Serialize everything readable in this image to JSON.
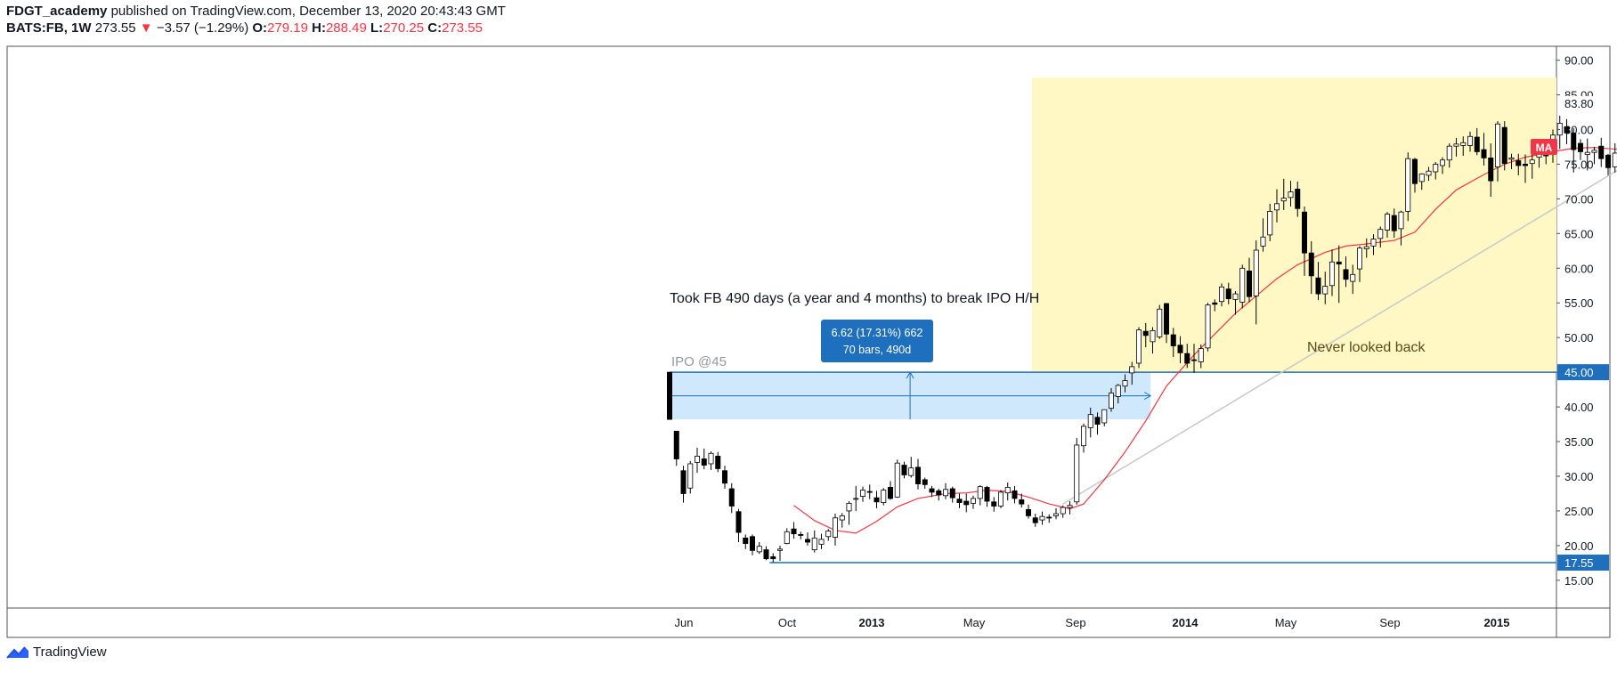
{
  "header": {
    "author": "FDGT_academy",
    "published_text": "published on TradingView.com, December 13, 2020 20:43:43 GMT",
    "symbol": "BATS:FB, 1W",
    "last": "273.55",
    "change_arrow": "▼",
    "change": "−3.57 (−1.29%)",
    "o_label": "O:",
    "o_value": "279.19",
    "h_label": "H:",
    "h_value": "288.49",
    "l_label": "L:",
    "l_value": "270.25",
    "c_label": "C:",
    "c_value": "273.55"
  },
  "footer": {
    "brand": "TradingView"
  },
  "colors": {
    "up": "#ffffff",
    "down": "#000000",
    "ma": "#f23645",
    "level": "#1e6fbd",
    "highlight": "#fff8c4",
    "measure": "#bbdefb",
    "trend": "#c8c8c8",
    "label_bg": "#1e6fbd"
  },
  "chart_data": {
    "type": "candlestick",
    "ylim": [
      11,
      92
    ],
    "y_ticks": [
      "15.00",
      "20.00",
      "25.00",
      "30.00",
      "35.00",
      "40.00",
      "45.00",
      "50.00",
      "55.00",
      "60.00",
      "65.00",
      "70.00",
      "75.00",
      "80.00",
      "85.00",
      "90.00"
    ],
    "x_ticks": [
      "Jun",
      "Oct",
      "2013",
      "May",
      "Sep",
      "2014",
      "May",
      "Sep",
      "2015"
    ],
    "x_ticks_bold": [
      "2013",
      "2014",
      "2015"
    ],
    "price_labels": [
      {
        "value": "83.80",
        "level": 83.8,
        "style": "plain"
      },
      {
        "value": "45.00",
        "level": 45,
        "style": "filled"
      },
      {
        "value": "17.55",
        "level": 17.55,
        "style": "filled"
      },
      {
        "value": "MA",
        "level": 77.5,
        "style": "ma"
      }
    ],
    "annotations": {
      "main": "Took FB 490 days (a year and 4 months) to break IPO H/H",
      "ipo": "IPO @45",
      "never": "Never looked back",
      "measure_line1": "6.62 (17.31%) 662",
      "measure_line2": "70 bars, 490d"
    },
    "levels": {
      "ipo_high": 45,
      "low": 17.55,
      "measure_low": 38.2
    },
    "candles": [
      [
        45,
        45,
        38.2,
        38.2
      ],
      [
        36.5,
        36.5,
        31.5,
        32.5
      ],
      [
        30.8,
        31.5,
        26.2,
        27.5
      ],
      [
        28.3,
        32.2,
        27.5,
        31.8
      ],
      [
        32,
        34.1,
        30.5,
        32.9
      ],
      [
        32.5,
        34,
        31,
        31.6
      ],
      [
        31.8,
        33.6,
        30.9,
        33.3
      ],
      [
        32.9,
        33.5,
        30.6,
        31.1
      ],
      [
        30.8,
        31.5,
        28.2,
        29
      ],
      [
        28.2,
        29,
        24.7,
        25.7
      ],
      [
        24.9,
        25.3,
        20.5,
        21.9
      ],
      [
        21.1,
        21.6,
        19.5,
        20.3
      ],
      [
        21.3,
        21.6,
        18.6,
        19.3
      ],
      [
        19.1,
        20.5,
        18.8,
        19.9
      ],
      [
        19.4,
        19.9,
        17.9,
        18.1
      ],
      [
        18.4,
        18.9,
        17.6,
        18.1
      ],
      [
        19.3,
        20,
        17.8,
        19.5
      ],
      [
        20.3,
        22.5,
        20.2,
        22
      ],
      [
        22.4,
        23.4,
        21,
        21.7
      ],
      [
        21.6,
        22,
        20.9,
        21.5
      ],
      [
        20.9,
        21.9,
        20,
        20.5
      ],
      [
        19.4,
        22.2,
        19,
        21.1
      ],
      [
        20.2,
        21.7,
        19.5,
        20.9
      ],
      [
        21.3,
        22.4,
        20.7,
        22.1
      ],
      [
        21.2,
        24.6,
        20,
        24
      ],
      [
        23.7,
        24.7,
        22.6,
        24.3
      ],
      [
        25,
        26.4,
        23,
        26.1
      ],
      [
        26.7,
        28.6,
        25,
        26.8
      ],
      [
        27.1,
        28.5,
        26.3,
        28
      ],
      [
        27.8,
        28.8,
        26.7,
        27.7
      ],
      [
        26.9,
        27.9,
        25.4,
        26.3
      ],
      [
        26.2,
        28.3,
        25.8,
        28
      ],
      [
        28.4,
        29.3,
        26.6,
        26.8
      ],
      [
        27,
        32.4,
        26.9,
        31.9
      ],
      [
        31.6,
        32.1,
        29.7,
        30.2
      ],
      [
        30.1,
        32.8,
        29.8,
        31.2
      ],
      [
        31.3,
        32.5,
        28.1,
        28.9
      ],
      [
        29.5,
        29.8,
        28.2,
        28.8
      ],
      [
        28.2,
        28.6,
        27,
        27.7
      ],
      [
        27.9,
        28.2,
        26.5,
        27.3
      ],
      [
        27.2,
        29,
        26.7,
        28.1
      ],
      [
        28.2,
        28.5,
        26.2,
        26.9
      ],
      [
        26.7,
        27.5,
        25.4,
        26.2
      ],
      [
        26.4,
        27.5,
        24.8,
        25.9
      ],
      [
        26.1,
        27.2,
        25.3,
        26.8
      ],
      [
        26.8,
        28.7,
        25.8,
        28.5
      ],
      [
        28.4,
        28.6,
        25.6,
        26.4
      ],
      [
        26.3,
        27,
        24.9,
        25.7
      ],
      [
        25.7,
        28,
        25.4,
        27.7
      ],
      [
        27.6,
        29.1,
        26.5,
        28.4
      ],
      [
        27.9,
        28.6,
        26.1,
        26.8
      ],
      [
        26.6,
        27.5,
        25.5,
        26
      ],
      [
        25.2,
        25.9,
        23.9,
        24.3
      ],
      [
        24,
        24.6,
        22.7,
        23.3
      ],
      [
        23.7,
        24.9,
        23,
        24.2
      ],
      [
        24.1,
        24.5,
        23.3,
        24
      ],
      [
        24.3,
        25.4,
        23.8,
        24.6
      ],
      [
        24.6,
        25.8,
        24,
        25.5
      ],
      [
        25.5,
        26.4,
        24.5,
        25.8
      ],
      [
        26.3,
        35.5,
        25.9,
        34.5
      ],
      [
        34.4,
        37.6,
        33.4,
        37.2
      ],
      [
        37,
        39.9,
        35.6,
        38.9
      ],
      [
        38.5,
        39.2,
        36,
        37.5
      ],
      [
        37.7,
        39.6,
        37.2,
        39.6
      ],
      [
        39.8,
        42.7,
        39.3,
        42
      ],
      [
        41.5,
        43.3,
        40.5,
        43.1
      ],
      [
        43,
        44.7,
        42.1,
        43.8
      ],
      [
        44.9,
        46.5,
        43.2,
        45.8
      ],
      [
        46.3,
        51.5,
        45.6,
        51.1
      ],
      [
        50.9,
        52.1,
        48.6,
        50.3
      ],
      [
        49.4,
        51.5,
        47.7,
        51
      ],
      [
        50.1,
        54.7,
        49.8,
        54.1
      ],
      [
        54.9,
        55,
        49.2,
        50.5
      ],
      [
        50.4,
        51.4,
        47.2,
        48.8
      ],
      [
        48.9,
        50.2,
        46.3,
        47.8
      ],
      [
        47.7,
        49.1,
        45.6,
        46.3
      ],
      [
        46.8,
        49.1,
        44.9,
        46.7
      ],
      [
        46.5,
        49,
        45.6,
        48.4
      ],
      [
        48.5,
        55,
        48,
        54.7
      ],
      [
        55,
        55.5,
        53.8,
        54.8
      ],
      [
        55.2,
        57.8,
        54.5,
        57.3
      ],
      [
        57,
        57.9,
        54.8,
        55.6
      ],
      [
        55.5,
        56.7,
        53.3,
        56.3
      ],
      [
        55.1,
        60.5,
        54.2,
        60
      ],
      [
        59.6,
        61.5,
        55.1,
        55.9
      ],
      [
        56,
        64,
        51.9,
        62.6
      ],
      [
        63.2,
        67.2,
        62.4,
        64.5
      ],
      [
        64.8,
        69.3,
        63.9,
        68.2
      ],
      [
        68.4,
        71.4,
        66.6,
        69.3
      ],
      [
        69.7,
        72.9,
        68.4,
        70.1
      ],
      [
        70.2,
        72.6,
        68.9,
        71
      ],
      [
        71.4,
        72.5,
        67.4,
        68.6
      ],
      [
        68.1,
        68.9,
        58.9,
        62.2
      ],
      [
        62.2,
        63.9,
        56.3,
        58.9
      ],
      [
        58.6,
        60.9,
        55.4,
        56.3
      ],
      [
        56.3,
        59.5,
        54.8,
        57.4
      ],
      [
        57.5,
        62.7,
        56,
        60.9
      ],
      [
        60.9,
        63.3,
        55,
        60.6
      ],
      [
        59.8,
        61.7,
        57.3,
        58.4
      ],
      [
        58.1,
        60.5,
        56.3,
        59.1
      ],
      [
        59.9,
        63.2,
        58,
        62.9
      ],
      [
        62.8,
        64.3,
        61.5,
        63.1
      ],
      [
        63.2,
        64.9,
        61.9,
        64.2
      ],
      [
        64.3,
        66,
        63,
        65.6
      ],
      [
        65.5,
        68.1,
        64.4,
        67.8
      ],
      [
        67.6,
        68.6,
        64.4,
        65.4
      ],
      [
        65.7,
        68.3,
        63.3,
        68.1
      ],
      [
        68.2,
        76.7,
        66.8,
        75.8
      ],
      [
        75.7,
        75.9,
        70.9,
        72.2
      ],
      [
        72.5,
        73.7,
        71.3,
        73.6
      ],
      [
        73.4,
        74.6,
        72.6,
        74
      ],
      [
        73.9,
        75.3,
        72.8,
        75
      ],
      [
        74.8,
        76,
        73.6,
        75.6
      ],
      [
        75.6,
        78,
        74.5,
        77.6
      ],
      [
        77.6,
        78.8,
        76.1,
        77.9
      ],
      [
        77.7,
        79,
        76.2,
        78.1
      ],
      [
        77.7,
        79.7,
        76.8,
        79
      ],
      [
        78.9,
        80.2,
        76.3,
        76.8
      ],
      [
        77.1,
        79.5,
        74.8,
        75.9
      ],
      [
        75.9,
        78,
        70.3,
        72.6
      ],
      [
        74.6,
        81.2,
        72.5,
        80.8
      ],
      [
        80.3,
        81.2,
        74.1,
        75.1
      ],
      [
        75.7,
        76.5,
        74.3,
        75.9
      ],
      [
        75.5,
        76.5,
        73.4,
        74.8
      ],
      [
        75,
        76.4,
        72.3,
        74.8
      ],
      [
        75.1,
        76.4,
        72.9,
        75.6
      ],
      [
        76,
        78.5,
        74.5,
        78.2
      ],
      [
        77.9,
        78.5,
        75,
        76.2
      ],
      [
        76.4,
        80,
        75.2,
        79.2
      ],
      [
        79.2,
        82,
        77.2,
        80.9
      ],
      [
        80.4,
        81.5,
        77.9,
        79.5
      ],
      [
        79.5,
        80.2,
        73.8,
        77.1
      ],
      [
        78,
        78.6,
        75.6,
        76.8
      ],
      [
        76.4,
        78.7,
        74.1,
        76.7
      ],
      [
        76.7,
        77.5,
        75,
        77
      ],
      [
        77.6,
        78.8,
        74.6,
        75.8
      ],
      [
        76.3,
        76.5,
        73.4,
        74.5
      ],
      [
        74.6,
        78,
        73.8,
        76.6
      ],
      [
        76.6,
        81.8,
        75.3,
        80.2
      ],
      [
        80.2,
        81.5,
        77.4,
        78.8
      ],
      [
        79.5,
        82.6,
        78.2,
        80.4
      ],
      [
        80.2,
        80.5,
        77.5,
        79
      ]
    ],
    "ma": [
      [
        18,
        25.8
      ],
      [
        21,
        23.6
      ],
      [
        24,
        22.2
      ],
      [
        27,
        21.8
      ],
      [
        30,
        23.5
      ],
      [
        33,
        25.6
      ],
      [
        36,
        26.8
      ],
      [
        40,
        27.5
      ],
      [
        43,
        27.6
      ],
      [
        46,
        28
      ],
      [
        49,
        27.8
      ],
      [
        52,
        27
      ],
      [
        55,
        26
      ],
      [
        58,
        25.3
      ],
      [
        60,
        26
      ],
      [
        63,
        29.5
      ],
      [
        66,
        33.5
      ],
      [
        69,
        38
      ],
      [
        72,
        43
      ],
      [
        76,
        47.5
      ],
      [
        79,
        50.5
      ],
      [
        82,
        53.5
      ],
      [
        85,
        56
      ],
      [
        88,
        58.5
      ],
      [
        91,
        60.5
      ],
      [
        95,
        62.3
      ],
      [
        98,
        63.2
      ],
      [
        101,
        63.5
      ],
      [
        105,
        64
      ],
      [
        108,
        65.2
      ],
      [
        111,
        68.5
      ],
      [
        114,
        71.3
      ],
      [
        118,
        73.5
      ],
      [
        121,
        75
      ],
      [
        124,
        76
      ],
      [
        128,
        76.8
      ],
      [
        131,
        77.3
      ],
      [
        134,
        77.4
      ],
      [
        138,
        77.1
      ],
      [
        141,
        77
      ]
    ],
    "trend": [
      [
        57,
        26
      ],
      [
        141,
        76.3
      ]
    ]
  }
}
